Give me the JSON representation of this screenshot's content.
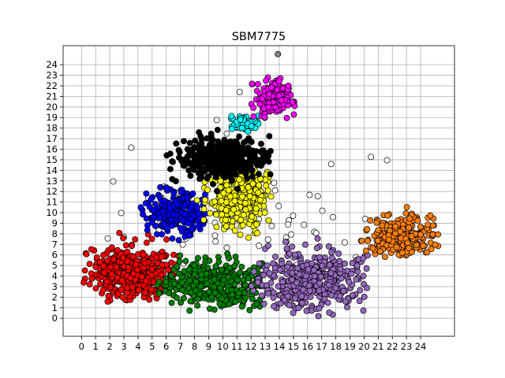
{
  "chart_data": {
    "type": "scatter",
    "title": "SBM7775",
    "xlabel": "",
    "ylabel": "",
    "xlim": [
      -1.3,
      26.4
    ],
    "ylim": [
      -1.7,
      25.8
    ],
    "x_ticks": [
      "0",
      "1",
      "2",
      "3",
      "4",
      "5",
      "6",
      "7",
      "8",
      "9",
      "10",
      "11",
      "12",
      "13",
      "14",
      "15",
      "16",
      "17",
      "18",
      "19",
      "20",
      "21",
      "22",
      "23",
      "24"
    ],
    "y_ticks": [
      "0",
      "1",
      "2",
      "3",
      "4",
      "5",
      "6",
      "7",
      "8",
      "9",
      "10",
      "11",
      "12",
      "13",
      "14",
      "15",
      "16",
      "17",
      "18",
      "19",
      "20",
      "21",
      "22",
      "23",
      "24"
    ],
    "grid": true,
    "legend": "none",
    "marker": "circle with black edge",
    "clusters": [
      {
        "color": "#ff0000",
        "label_in_picture": "red cluster",
        "center": [
          3.7,
          4.3
        ],
        "spread": [
          1.6,
          1.3
        ],
        "count": 420,
        "x_range": [
          0.0,
          7.2
        ],
        "y_range": [
          1.5,
          8.3
        ]
      },
      {
        "color": "#008000",
        "label_in_picture": "green cluster",
        "center": [
          9.3,
          3.2
        ],
        "spread": [
          1.8,
          1.1
        ],
        "count": 360,
        "x_range": [
          5.3,
          12.8
        ],
        "y_range": [
          0.5,
          6.8
        ]
      },
      {
        "color": "#9467bd",
        "label_in_picture": "purple cluster",
        "center": [
          16.2,
          3.7
        ],
        "spread": [
          2.0,
          1.4
        ],
        "count": 420,
        "x_range": [
          12.0,
          20.3
        ],
        "y_range": [
          0.0,
          7.6
        ]
      },
      {
        "color": "#ff7f0e",
        "label_in_picture": "orange cluster",
        "center": [
          22.6,
          7.8
        ],
        "spread": [
          1.3,
          0.9
        ],
        "count": 260,
        "x_range": [
          19.5,
          25.4
        ],
        "y_range": [
          4.6,
          11.0
        ]
      },
      {
        "color": "#0000ff",
        "label_in_picture": "blue cluster",
        "center": [
          6.7,
          10.0
        ],
        "spread": [
          1.1,
          1.0
        ],
        "count": 260,
        "x_range": [
          4.2,
          9.0
        ],
        "y_range": [
          6.5,
          12.5
        ]
      },
      {
        "color": "#ffff00",
        "label_in_picture": "yellow cluster",
        "center": [
          11.2,
          11.4
        ],
        "spread": [
          1.1,
          1.5
        ],
        "count": 320,
        "x_range": [
          7.8,
          14.3
        ],
        "y_range": [
          7.0,
          15.0
        ]
      },
      {
        "color": "#000000",
        "label_in_picture": "black cluster",
        "center": [
          9.8,
          15.2
        ],
        "spread": [
          1.6,
          1.0
        ],
        "count": 380,
        "x_range": [
          6.0,
          13.4
        ],
        "y_range": [
          11.8,
          18.0
        ]
      },
      {
        "color": "#00ffff",
        "label_in_picture": "cyan cluster",
        "center": [
          11.5,
          18.4
        ],
        "spread": [
          0.6,
          0.35
        ],
        "count": 60,
        "x_range": [
          10.4,
          12.6
        ],
        "y_range": [
          17.3,
          19.2
        ]
      },
      {
        "color": "#ff00ff",
        "label_in_picture": "magenta cluster",
        "center": [
          13.6,
          20.8
        ],
        "spread": [
          0.7,
          0.8
        ],
        "count": 180,
        "x_range": [
          11.8,
          15.2
        ],
        "y_range": [
          18.0,
          23.0
        ]
      },
      {
        "color": "#ffffff",
        "label_in_picture": "white outliers",
        "center": [
          11.5,
          10.0
        ],
        "spread": [
          5.0,
          5.0
        ],
        "count": 90,
        "x_range": [
          0.0,
          24.0
        ],
        "y_range": [
          0.0,
          24.5
        ]
      }
    ],
    "special_points": [
      {
        "x": 13.9,
        "y": 25.0,
        "color": "#808080"
      }
    ]
  }
}
